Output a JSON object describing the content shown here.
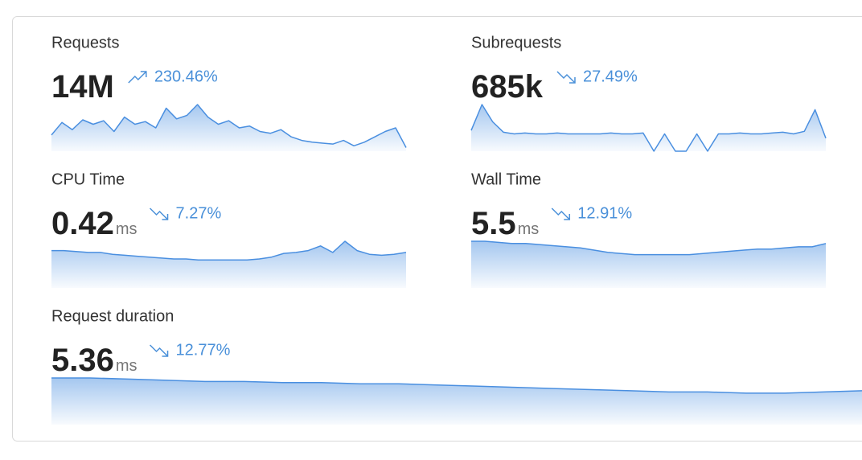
{
  "metrics": [
    {
      "label": "Requests",
      "value": "14M",
      "change": "230.46%",
      "trend": "up",
      "sparkline": [
        18,
        32,
        24,
        35,
        30,
        34,
        22,
        38,
        30,
        33,
        26,
        48,
        36,
        40,
        52,
        38,
        30,
        34,
        26,
        28,
        22,
        20,
        24,
        16,
        12,
        10,
        9,
        8,
        12,
        6,
        10,
        16,
        22,
        26,
        4
      ]
    },
    {
      "label": "Subrequests",
      "value": "685k",
      "change": "27.49%",
      "trend": "down",
      "sparkline": [
        24,
        54,
        34,
        22,
        20,
        21,
        20,
        20,
        21,
        20,
        20,
        20,
        20,
        21,
        20,
        20,
        21,
        0,
        20,
        0,
        0,
        20,
        0,
        20,
        20,
        21,
        20,
        20,
        21,
        22,
        20,
        23,
        48,
        15
      ]
    },
    {
      "label": "CPU Time",
      "value": "0.42",
      "unit": "ms",
      "change": "7.27%",
      "trend": "down",
      "sparkline": [
        40,
        40,
        39,
        38,
        38,
        36,
        35,
        34,
        33,
        32,
        31,
        31,
        30,
        30,
        30,
        30,
        30,
        31,
        33,
        37,
        38,
        40,
        45,
        38,
        50,
        40,
        36,
        35,
        36,
        38
      ]
    },
    {
      "label": "Wall Time",
      "value": "5.5",
      "unit": "ms",
      "change": "12.91%",
      "trend": "down",
      "sparkline": [
        42,
        42,
        41,
        40,
        40,
        39,
        38,
        37,
        36,
        34,
        32,
        31,
        30,
        30,
        30,
        30,
        30,
        31,
        32,
        33,
        34,
        35,
        35,
        36,
        37,
        37,
        40
      ]
    },
    {
      "label": "Request duration",
      "value": "5.36",
      "unit": "ms",
      "change": "12.77%",
      "trend": "down",
      "sparkline": [
        40,
        40,
        39,
        38,
        37,
        37,
        36,
        36,
        35,
        35,
        34,
        33,
        32,
        31,
        30,
        29,
        28,
        28,
        27,
        27,
        28,
        29
      ]
    }
  ]
}
